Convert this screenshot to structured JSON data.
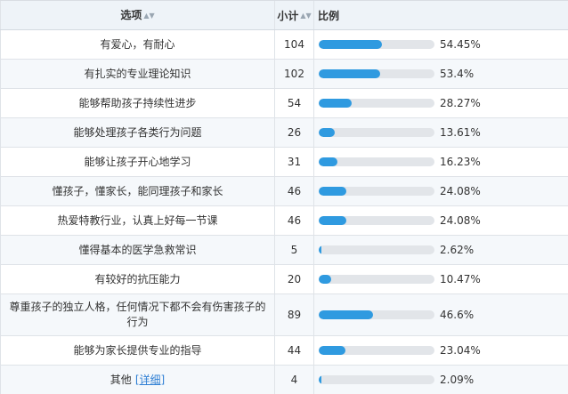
{
  "header": {
    "option_label": "选项",
    "count_label": "小计",
    "ratio_label": "比例",
    "sort_icon": "sort-icon"
  },
  "rows": [
    {
      "option": "有爱心，有耐心",
      "count": "104",
      "percent": "54.45%",
      "fraction": 0.5445
    },
    {
      "option": "有扎实的专业理论知识",
      "count": "102",
      "percent": "53.4%",
      "fraction": 0.534
    },
    {
      "option": "能够帮助孩子持续性进步",
      "count": "54",
      "percent": "28.27%",
      "fraction": 0.2827
    },
    {
      "option": "能够处理孩子各类行为问题",
      "count": "26",
      "percent": "13.61%",
      "fraction": 0.1361
    },
    {
      "option": "能够让孩子开心地学习",
      "count": "31",
      "percent": "16.23%",
      "fraction": 0.1623
    },
    {
      "option": "懂孩子，懂家长，能同理孩子和家长",
      "count": "46",
      "percent": "24.08%",
      "fraction": 0.2408
    },
    {
      "option": "热爱特教行业，认真上好每一节课",
      "count": "46",
      "percent": "24.08%",
      "fraction": 0.2408
    },
    {
      "option": "懂得基本的医学急救常识",
      "count": "5",
      "percent": "2.62%",
      "fraction": 0.0262
    },
    {
      "option": "有较好的抗压能力",
      "count": "20",
      "percent": "10.47%",
      "fraction": 0.1047
    },
    {
      "option": "尊重孩子的独立人格，任何情况下都不会有伤害孩子的行为",
      "count": "89",
      "percent": "46.6%",
      "fraction": 0.466
    },
    {
      "option": "能够为家长提供专业的指导",
      "count": "44",
      "percent": "23.04%",
      "fraction": 0.2304
    },
    {
      "option": "其他",
      "detail_label": "详细",
      "count": "4",
      "percent": "2.09%",
      "fraction": 0.0209
    }
  ],
  "colors": {
    "bar_fill": "#2f9ae0",
    "bar_track": "#e2e5e9",
    "header_bg": "#eef3f8",
    "alt_row_bg": "#f5f8fb",
    "link": "#2f7fd4"
  }
}
